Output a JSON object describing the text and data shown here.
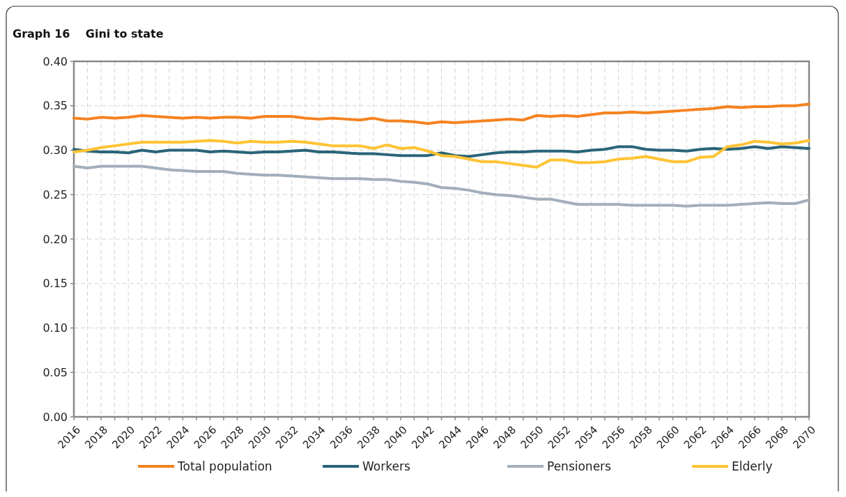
{
  "chart_data": {
    "type": "line",
    "title": "Graph 16    Gini to state",
    "x": [
      2016,
      2017,
      2018,
      2019,
      2020,
      2021,
      2022,
      2023,
      2024,
      2025,
      2026,
      2027,
      2028,
      2029,
      2030,
      2031,
      2032,
      2033,
      2034,
      2035,
      2036,
      2037,
      2038,
      2039,
      2040,
      2041,
      2042,
      2043,
      2044,
      2045,
      2046,
      2047,
      2048,
      2049,
      2050,
      2051,
      2052,
      2053,
      2054,
      2055,
      2056,
      2057,
      2058,
      2059,
      2060,
      2061,
      2062,
      2063,
      2064,
      2065,
      2066,
      2067,
      2068,
      2069,
      2070
    ],
    "xlim": [
      2016,
      2070
    ],
    "xticks": [
      2016,
      {
        "value": 2017,
        "label": null
      },
      2018,
      {
        "value": 2019,
        "label": null
      },
      2020,
      {
        "value": 2021,
        "label": null
      },
      2022,
      {
        "value": 2023,
        "label": null
      },
      2024,
      {
        "value": 2025,
        "label": null
      },
      2026,
      {
        "value": 2027,
        "label": null
      },
      2028,
      {
        "value": 2029,
        "label": null
      },
      2030,
      {
        "value": 2031,
        "label": null
      },
      2032,
      {
        "value": 2033,
        "label": null
      },
      2034,
      {
        "value": 2035,
        "label": null
      },
      2036,
      {
        "value": 2037,
        "label": null
      },
      2038,
      {
        "value": 2039,
        "label": null
      },
      2040,
      {
        "value": 2041,
        "label": null
      },
      2042,
      {
        "value": 2043,
        "label": null
      },
      2044,
      {
        "value": 2045,
        "label": null
      },
      2046,
      {
        "value": 2047,
        "label": null
      },
      2048,
      {
        "value": 2049,
        "label": null
      },
      2050,
      {
        "value": 2051,
        "label": null
      },
      2052,
      {
        "value": 2053,
        "label": null
      },
      2054,
      {
        "value": 2055,
        "label": null
      },
      2056,
      {
        "value": 2057,
        "label": null
      },
      2058,
      {
        "value": 2059,
        "label": null
      },
      2060,
      {
        "value": 2061,
        "label": null
      },
      2062,
      {
        "value": 2063,
        "label": null
      },
      2064,
      {
        "value": 2065,
        "label": null
      },
      2066,
      {
        "value": 2067,
        "label": null
      },
      2068,
      {
        "value": 2069,
        "label": null
      },
      2070
    ],
    "ylim": [
      0,
      0.4
    ],
    "yticks": [
      {
        "value": 0,
        "label": "0.00"
      },
      {
        "value": 0.05,
        "label": "0.05"
      },
      {
        "value": 0.1,
        "label": "0.10"
      },
      {
        "value": 0.15,
        "label": "0.15"
      },
      {
        "value": 0.2,
        "label": "0.20"
      },
      {
        "value": 0.25,
        "label": "0.25"
      },
      {
        "value": 0.3,
        "label": "0.30"
      },
      {
        "value": 0.35,
        "label": "0.35"
      },
      {
        "value": 0.4,
        "label": "0.40"
      }
    ],
    "grid": true,
    "legend": "bottom",
    "line_style": "solid",
    "series": [
      {
        "name": "Total population",
        "color": "#f58220",
        "values": [
          0.336,
          0.335,
          0.337,
          0.336,
          0.337,
          0.339,
          0.338,
          0.337,
          0.336,
          0.337,
          0.336,
          0.337,
          0.337,
          0.336,
          0.338,
          0.338,
          0.338,
          0.336,
          0.335,
          0.336,
          0.335,
          0.334,
          0.336,
          0.333,
          0.333,
          0.332,
          0.33,
          0.332,
          0.331,
          0.332,
          0.333,
          0.334,
          0.335,
          0.334,
          0.339,
          0.338,
          0.339,
          0.338,
          0.34,
          0.342,
          0.342,
          0.343,
          0.342,
          0.343,
          0.344,
          0.345,
          0.346,
          0.347,
          0.349,
          0.348,
          0.349,
          0.349,
          0.35,
          0.35,
          0.352
        ]
      },
      {
        "name": "Workers",
        "color": "#2a6478",
        "values": [
          0.301,
          0.299,
          0.298,
          0.298,
          0.297,
          0.3,
          0.298,
          0.3,
          0.3,
          0.3,
          0.298,
          0.299,
          0.298,
          0.297,
          0.298,
          0.298,
          0.299,
          0.3,
          0.298,
          0.298,
          0.297,
          0.296,
          0.296,
          0.295,
          0.294,
          0.294,
          0.294,
          0.297,
          0.294,
          0.293,
          0.295,
          0.297,
          0.298,
          0.298,
          0.299,
          0.299,
          0.299,
          0.298,
          0.3,
          0.301,
          0.304,
          0.304,
          0.301,
          0.3,
          0.3,
          0.299,
          0.301,
          0.302,
          0.301,
          0.302,
          0.304,
          0.302,
          0.304,
          0.303,
          0.302
        ]
      },
      {
        "name": "Pensioners",
        "color": "#a2aebb",
        "values": [
          0.282,
          0.28,
          0.282,
          0.282,
          0.282,
          0.282,
          0.28,
          0.278,
          0.277,
          0.276,
          0.276,
          0.276,
          0.274,
          0.273,
          0.272,
          0.272,
          0.271,
          0.27,
          0.269,
          0.268,
          0.268,
          0.268,
          0.267,
          0.267,
          0.265,
          0.264,
          0.262,
          0.258,
          0.257,
          0.255,
          0.252,
          0.25,
          0.249,
          0.247,
          0.245,
          0.245,
          0.242,
          0.239,
          0.239,
          0.239,
          0.239,
          0.238,
          0.238,
          0.238,
          0.238,
          0.237,
          0.238,
          0.238,
          0.238,
          0.239,
          0.24,
          0.241,
          0.24,
          0.24,
          0.244
        ]
      },
      {
        "name": "Elderly",
        "color": "#ffc333",
        "values": [
          0.298,
          0.3,
          0.303,
          0.305,
          0.307,
          0.309,
          0.309,
          0.309,
          0.309,
          0.31,
          0.311,
          0.31,
          0.308,
          0.31,
          0.309,
          0.309,
          0.31,
          0.309,
          0.307,
          0.305,
          0.305,
          0.305,
          0.302,
          0.306,
          0.302,
          0.303,
          0.299,
          0.294,
          0.293,
          0.29,
          0.287,
          0.287,
          0.285,
          0.283,
          0.281,
          0.289,
          0.289,
          0.286,
          0.286,
          0.287,
          0.29,
          0.291,
          0.293,
          0.29,
          0.287,
          0.287,
          0.292,
          0.293,
          0.304,
          0.306,
          0.31,
          0.309,
          0.307,
          0.308,
          0.311
        ]
      }
    ]
  }
}
